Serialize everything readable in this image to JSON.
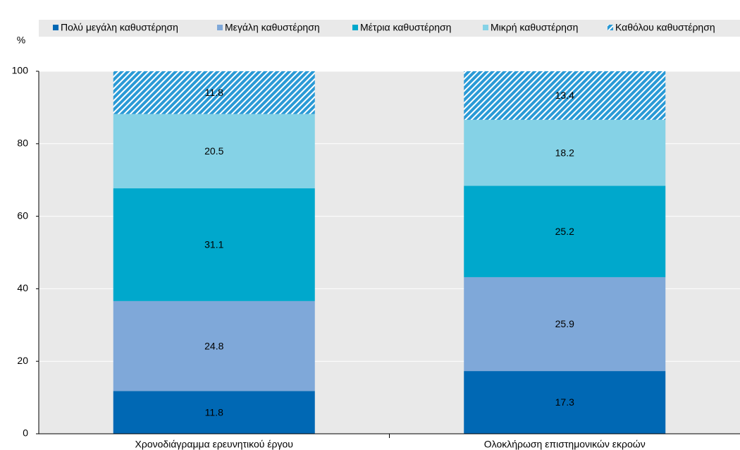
{
  "chart_data": {
    "type": "stacked_bar",
    "y_label": "%",
    "categories": [
      "Χρονοδιάγραμμα ερευνητικού έργου",
      "Ολοκλήρωση επιστημονικών εκροών"
    ],
    "series": [
      {
        "name": "Πολύ μεγάλη καθυστέρηση",
        "color": "#0068b4",
        "values": [
          11.8,
          17.3
        ]
      },
      {
        "name": "Μεγάλη καθυστέρηση",
        "color": "#7fa8d9",
        "values": [
          24.8,
          25.9
        ]
      },
      {
        "name": "Μέτρια καθυστέρηση",
        "color": "#00a8cc",
        "values": [
          31.1,
          25.2
        ]
      },
      {
        "name": "Μικρή καθυστέρηση",
        "color": "#85d2e6",
        "values": [
          20.5,
          18.2
        ]
      },
      {
        "name": "Καθόλου καθυστέρηση",
        "color": "#2a9ad6",
        "pattern": "hatch",
        "values": [
          11.8,
          13.4
        ]
      }
    ],
    "ylim": [
      0,
      100
    ],
    "yticks": [
      0,
      20,
      40,
      60,
      80,
      100
    ],
    "grid": true
  }
}
